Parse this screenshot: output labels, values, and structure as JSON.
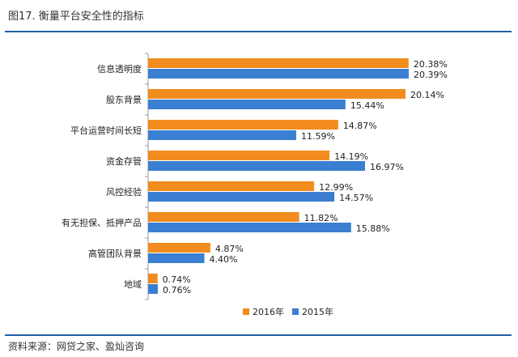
{
  "header": {
    "title": "图17. 衡量平台安全性的指标"
  },
  "footer": {
    "source": "资料来源：网贷之家、盈灿咨询"
  },
  "legend": [
    {
      "label": "2016年",
      "color": "#f28c1e"
    },
    {
      "label": "2015年",
      "color": "#3a7fd1"
    }
  ],
  "chart_data": {
    "type": "bar",
    "orientation": "horizontal",
    "categories": [
      "信息透明度",
      "股东背景",
      "平台运营时间长短",
      "资金存管",
      "风控经验",
      "有无担保、抵押产品",
      "高管团队背景",
      "地域"
    ],
    "series": [
      {
        "name": "2016年",
        "color": "#f28c1e",
        "values": [
          20.38,
          20.14,
          14.87,
          14.19,
          12.99,
          11.82,
          4.87,
          0.74
        ],
        "labels": [
          "20.38%",
          "20.14%",
          "14.87%",
          "14.19%",
          "12.99%",
          "11.82%",
          "4.87%",
          "0.74%"
        ]
      },
      {
        "name": "2015年",
        "color": "#3a7fd1",
        "values": [
          20.39,
          15.44,
          11.59,
          16.97,
          14.57,
          15.88,
          4.4,
          0.76
        ],
        "labels": [
          "20.39%",
          "15.44%",
          "11.59%",
          "16.97%",
          "14.57%",
          "15.88%",
          "4.40%",
          "0.76%"
        ]
      }
    ],
    "xlim": [
      0,
      20.39
    ],
    "legend_position": "bottom"
  }
}
